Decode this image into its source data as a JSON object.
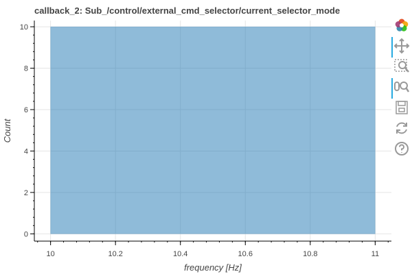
{
  "chart_data": {
    "type": "bar",
    "title": "callback_2: Sub_/control/external_cmd_selector/current_selector_mode",
    "xlabel": "frequency [Hz]",
    "ylabel": "Count",
    "xlim": [
      9.95,
      11.05
    ],
    "ylim": [
      -0.35,
      10.3
    ],
    "x_ticks": [
      "10",
      "10.2",
      "10.4",
      "10.6",
      "10.8",
      "11"
    ],
    "y_ticks": [
      "0",
      "2",
      "4",
      "6",
      "8",
      "10"
    ],
    "bins": [
      {
        "left": 10,
        "right": 11,
        "count": 10
      }
    ],
    "bar_color": "#1f77b4",
    "bar_alpha": 0.5,
    "grid": true,
    "legend": "none"
  },
  "toolbar": {
    "tools": [
      {
        "icon": "bokeh-logo-icon",
        "active": false
      },
      {
        "icon": "pan-icon",
        "active": true
      },
      {
        "icon": "box-zoom-icon",
        "active": false
      },
      {
        "icon": "wheel-zoom-icon",
        "active": true
      },
      {
        "icon": "save-icon",
        "active": false
      },
      {
        "icon": "reset-icon",
        "active": false
      },
      {
        "icon": "help-icon",
        "active": false
      }
    ]
  }
}
